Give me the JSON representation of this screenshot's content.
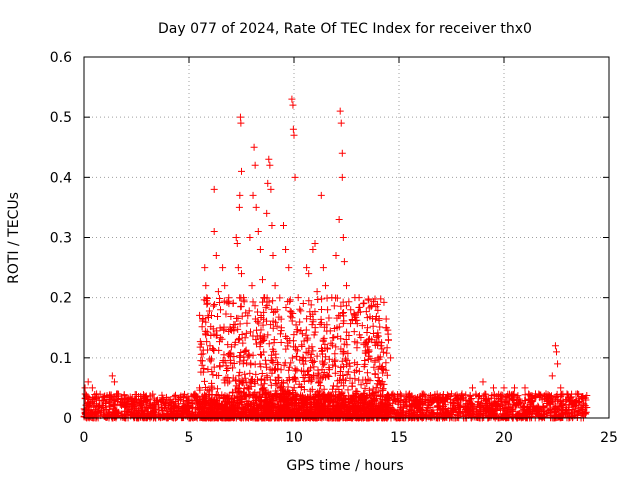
{
  "chart_data": {
    "type": "scatter",
    "title": "Day 077 of 2024, Rate Of TEC Index for receiver thx0",
    "xlabel": "GPS time / hours",
    "ylabel": "ROTI / TECUs",
    "xlim": [
      0,
      25
    ],
    "ylim": [
      0,
      0.6
    ],
    "xticks": [
      0,
      5,
      10,
      15,
      20,
      25
    ],
    "xtick_labels": [
      "0",
      "5",
      "10",
      "15",
      "20",
      "25"
    ],
    "yticks": [
      0,
      0.1,
      0.2,
      0.3,
      0.4,
      0.5,
      0.6
    ],
    "ytick_labels": [
      "0",
      "0.1",
      "0.2",
      "0.3",
      "0.4",
      "0.5",
      "0.6"
    ],
    "grid": true,
    "marker": "plus",
    "series": [
      {
        "name": "ROTI",
        "color": "#ff0000",
        "points": [
          [
            0.05,
            0.05
          ],
          [
            0.2,
            0.06
          ],
          [
            0.4,
            0.05
          ],
          [
            0.6,
            0.04
          ],
          [
            1.0,
            0.03
          ],
          [
            1.35,
            0.07
          ],
          [
            1.45,
            0.06
          ],
          [
            1.6,
            0.04
          ],
          [
            2.0,
            0.03
          ],
          [
            2.5,
            0.03
          ],
          [
            3.0,
            0.03
          ],
          [
            3.5,
            0.03
          ],
          [
            4.0,
            0.03
          ],
          [
            4.5,
            0.03
          ],
          [
            5.0,
            0.03
          ],
          [
            5.5,
            0.05
          ],
          [
            5.75,
            0.25
          ],
          [
            5.8,
            0.22
          ],
          [
            5.85,
            0.2
          ],
          [
            5.9,
            0.17
          ],
          [
            6.0,
            0.12
          ],
          [
            6.2,
            0.38
          ],
          [
            6.2,
            0.31
          ],
          [
            6.3,
            0.27
          ],
          [
            6.4,
            0.21
          ],
          [
            6.5,
            0.18
          ],
          [
            6.6,
            0.25
          ],
          [
            6.7,
            0.22
          ],
          [
            6.9,
            0.19
          ],
          [
            7.1,
            0.15
          ],
          [
            7.25,
            0.3
          ],
          [
            7.3,
            0.29
          ],
          [
            7.35,
            0.25
          ],
          [
            7.4,
            0.35
          ],
          [
            7.42,
            0.37
          ],
          [
            7.45,
            0.5
          ],
          [
            7.47,
            0.49
          ],
          [
            7.5,
            0.41
          ],
          [
            7.5,
            0.24
          ],
          [
            7.6,
            0.2
          ],
          [
            7.8,
            0.17
          ],
          [
            7.9,
            0.3
          ],
          [
            8.0,
            0.22
          ],
          [
            8.05,
            0.37
          ],
          [
            8.1,
            0.45
          ],
          [
            8.15,
            0.42
          ],
          [
            8.2,
            0.35
          ],
          [
            8.3,
            0.31
          ],
          [
            8.4,
            0.28
          ],
          [
            8.5,
            0.23
          ],
          [
            8.6,
            0.2
          ],
          [
            8.7,
            0.34
          ],
          [
            8.75,
            0.39
          ],
          [
            8.8,
            0.43
          ],
          [
            8.85,
            0.42
          ],
          [
            8.9,
            0.38
          ],
          [
            8.95,
            0.32
          ],
          [
            9.0,
            0.27
          ],
          [
            9.1,
            0.22
          ],
          [
            9.2,
            0.18
          ],
          [
            9.4,
            0.15
          ],
          [
            9.5,
            0.32
          ],
          [
            9.6,
            0.28
          ],
          [
            9.75,
            0.25
          ],
          [
            9.9,
            0.53
          ],
          [
            9.95,
            0.52
          ],
          [
            9.97,
            0.48
          ],
          [
            10.0,
            0.47
          ],
          [
            10.05,
            0.4
          ],
          [
            10.2,
            0.2
          ],
          [
            10.4,
            0.14
          ],
          [
            10.6,
            0.25
          ],
          [
            10.7,
            0.24
          ],
          [
            10.9,
            0.28
          ],
          [
            11.0,
            0.29
          ],
          [
            11.1,
            0.21
          ],
          [
            11.3,
            0.37
          ],
          [
            11.4,
            0.25
          ],
          [
            11.5,
            0.22
          ],
          [
            11.6,
            0.18
          ],
          [
            11.8,
            0.2
          ],
          [
            12.0,
            0.27
          ],
          [
            12.15,
            0.33
          ],
          [
            12.2,
            0.51
          ],
          [
            12.25,
            0.49
          ],
          [
            12.3,
            0.44
          ],
          [
            12.3,
            0.4
          ],
          [
            12.35,
            0.3
          ],
          [
            12.4,
            0.26
          ],
          [
            12.5,
            0.22
          ],
          [
            12.7,
            0.18
          ],
          [
            12.9,
            0.2
          ],
          [
            13.1,
            0.2
          ],
          [
            13.3,
            0.19
          ],
          [
            13.5,
            0.15
          ],
          [
            13.7,
            0.13
          ],
          [
            14.0,
            0.1
          ],
          [
            14.4,
            0.15
          ],
          [
            14.5,
            0.13
          ],
          [
            14.6,
            0.1
          ],
          [
            15.0,
            0.03
          ],
          [
            15.5,
            0.03
          ],
          [
            16.0,
            0.03
          ],
          [
            16.5,
            0.03
          ],
          [
            17.0,
            0.03
          ],
          [
            17.5,
            0.04
          ],
          [
            18.0,
            0.04
          ],
          [
            18.5,
            0.05
          ],
          [
            19.0,
            0.06
          ],
          [
            19.5,
            0.05
          ],
          [
            20.0,
            0.05
          ],
          [
            20.5,
            0.05
          ],
          [
            21.0,
            0.05
          ],
          [
            21.5,
            0.04
          ],
          [
            22.0,
            0.04
          ],
          [
            22.3,
            0.07
          ],
          [
            22.45,
            0.12
          ],
          [
            22.5,
            0.11
          ],
          [
            22.55,
            0.09
          ],
          [
            22.7,
            0.05
          ],
          [
            23.0,
            0.04
          ],
          [
            23.5,
            0.04
          ],
          [
            23.9,
            0.03
          ]
        ],
        "background_band": {
          "description": "dense cloud of low values across the whole day",
          "x_range": [
            0,
            24
          ],
          "y_range": [
            0,
            0.04
          ]
        },
        "active_period": {
          "description": "dense cloud of elevated values",
          "x_range": [
            5.5,
            14.5
          ],
          "typical_max": 0.2
        }
      }
    ]
  }
}
